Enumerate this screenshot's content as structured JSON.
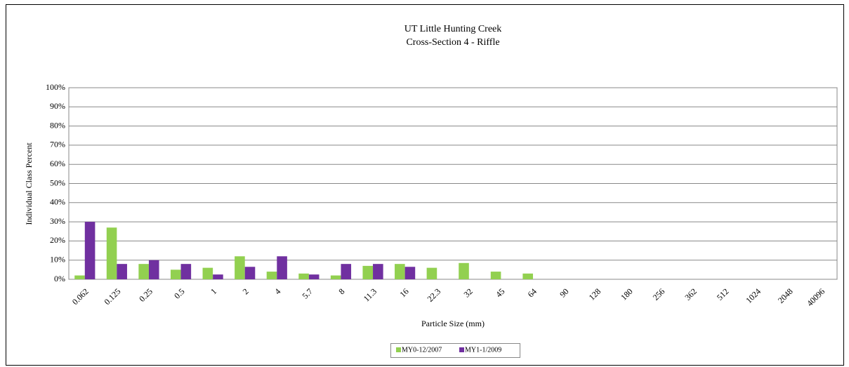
{
  "chart_data": {
    "type": "bar",
    "title": [
      "UT Little Hunting Creek",
      "Cross-Section 4 - Riffle"
    ],
    "x_label": "Particle Size (mm)",
    "y_label": "Individual Class Percent",
    "categories": [
      "0.062",
      "0.125",
      "0.25",
      "0.5",
      "1",
      "2",
      "4",
      "5.7",
      "8",
      "11.3",
      "16",
      "22.3",
      "32",
      "45",
      "64",
      "90",
      "128",
      "180",
      "256",
      "362",
      "512",
      "1024",
      "2048",
      "40096"
    ],
    "series": [
      {
        "name": "MY0-12/2007",
        "color": "#92d050",
        "values": [
          2,
          27,
          8,
          5,
          6,
          12,
          4,
          3,
          2,
          7,
          8,
          6,
          8.5,
          4,
          3,
          0,
          0,
          0,
          0,
          0,
          0,
          0,
          0,
          0
        ]
      },
      {
        "name": "MY1-1/2009",
        "color": "#7030a0",
        "values": [
          30,
          8,
          10,
          8,
          2.5,
          6.5,
          12,
          2.5,
          8,
          8,
          6.5,
          0,
          0,
          0,
          0,
          0,
          0,
          0,
          0,
          0,
          0,
          0,
          0,
          0
        ]
      }
    ],
    "ylim": [
      0,
      100
    ],
    "yticks": [
      {
        "value": 0,
        "label": "0%"
      },
      {
        "value": 10,
        "label": "10%"
      },
      {
        "value": 20,
        "label": "20%"
      },
      {
        "value": 30,
        "label": "30%"
      },
      {
        "value": 40,
        "label": "40%"
      },
      {
        "value": 50,
        "label": "50%"
      },
      {
        "value": 60,
        "label": "60%"
      },
      {
        "value": 70,
        "label": "70%"
      },
      {
        "value": 80,
        "label": "80%"
      },
      {
        "value": 90,
        "label": "90%"
      },
      {
        "value": 100,
        "label": "100%"
      }
    ],
    "grid": true,
    "legend": "bottom"
  }
}
